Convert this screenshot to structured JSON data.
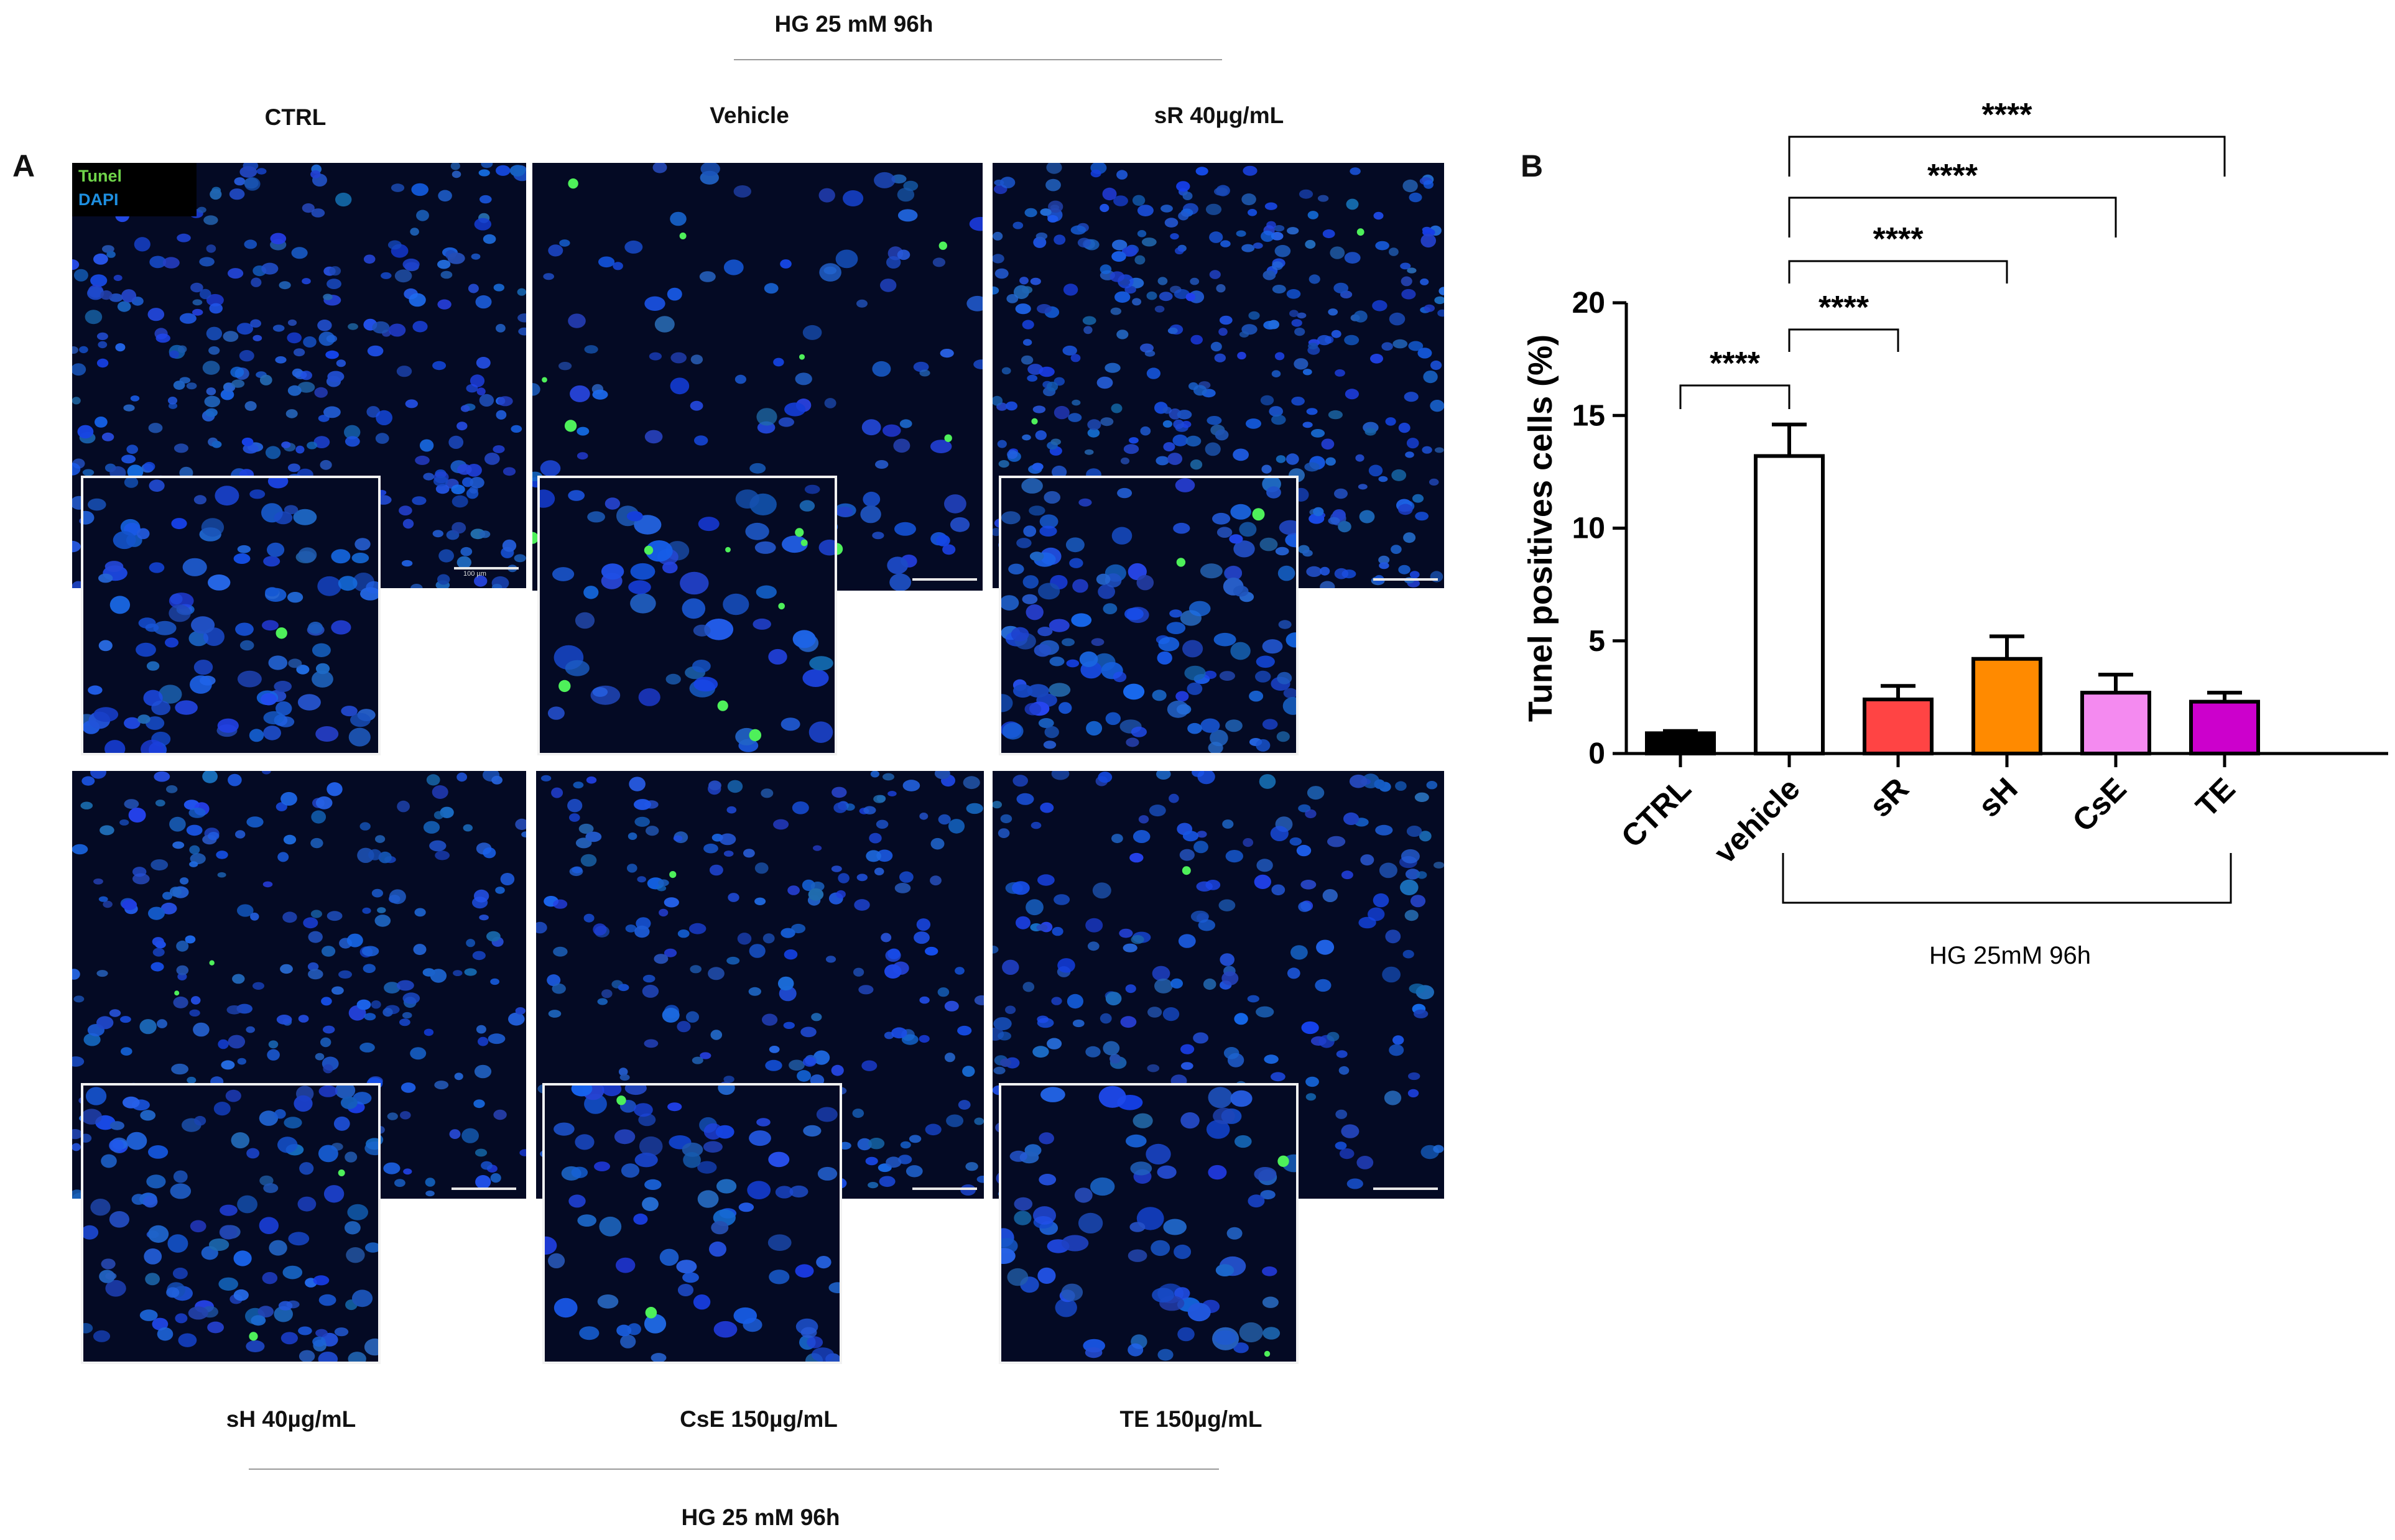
{
  "panel_a": {
    "letter": "A",
    "top_group_label": "HG 25 mM 96h",
    "bottom_group_label": "HG 25 mM 96h",
    "legend": {
      "tunel": "Tunel",
      "dapi": "DAPI",
      "tunel_color": "#6fd44a",
      "dapi_color": "#1e8fe0"
    },
    "scalebar_text": "100 µm",
    "images": [
      {
        "label": "CTRL",
        "apoptotic": 1
      },
      {
        "label": "Vehicle",
        "apoptotic": 12
      },
      {
        "label": "sR 40µg/mL",
        "apoptotic": 2
      },
      {
        "label": "sH 40µg/mL",
        "apoptotic": 3
      },
      {
        "label": "CsE 150µg/mL",
        "apoptotic": 2
      },
      {
        "label": "TE 150µg/mL",
        "apoptotic": 2
      }
    ]
  },
  "panel_b": {
    "letter": "B",
    "group_label": "HG 25mM 96h"
  },
  "chart_data": {
    "type": "bar",
    "title": "",
    "xlabel": "",
    "ylabel": "Tunel positives cells (%)",
    "ylim": [
      0,
      20
    ],
    "yticks": [
      0,
      5,
      10,
      15,
      20
    ],
    "categories": [
      "CTRL",
      "vehicle",
      "sR",
      "sH",
      "CsE",
      "TE"
    ],
    "values": [
      0.9,
      13.2,
      2.4,
      4.2,
      2.7,
      2.3
    ],
    "errors": [
      0.1,
      1.4,
      0.6,
      1.0,
      0.8,
      0.4
    ],
    "colors": [
      "#000000",
      "#ffffff",
      "#ff4444",
      "#ff8a00",
      "#f48af0",
      "#cc00cc"
    ],
    "significance": [
      {
        "from": "CTRL",
        "to": "vehicle",
        "label": "****"
      },
      {
        "from": "vehicle",
        "to": "sR",
        "label": "****"
      },
      {
        "from": "vehicle",
        "to": "sH",
        "label": "****"
      },
      {
        "from": "vehicle",
        "to": "CsE",
        "label": "****"
      },
      {
        "from": "vehicle",
        "to": "TE",
        "label": "****"
      }
    ],
    "group_bracket": {
      "from": "vehicle",
      "to": "TE",
      "label": "HG 25mM 96h"
    }
  }
}
